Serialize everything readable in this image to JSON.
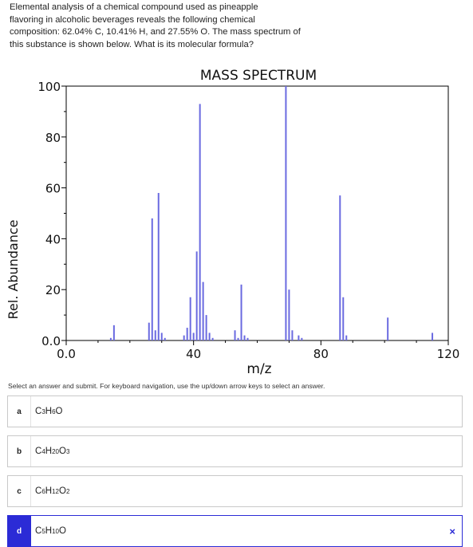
{
  "question": {
    "lines": [
      "Elemental analysis of a chemical compound used as pineapple",
      "flavoring in alcoholic beverages reveals the following chemical",
      "composition: 62.04% C, 10.41% H, and 27.55% O. The mass spectrum of",
      "this substance is shown below. What is its molecular formula?"
    ]
  },
  "chart_data": {
    "type": "bar",
    "title": "MASS SPECTRUM",
    "xlabel": "m/z",
    "ylabel": "Rel. Abundance",
    "xlim": [
      0,
      120
    ],
    "ylim": [
      0,
      100
    ],
    "x_ticks": [
      "0.0",
      "40",
      "80",
      "120"
    ],
    "y_ticks": [
      "0.0",
      "20",
      "40",
      "60",
      "80",
      "100"
    ],
    "color": "#6a6ae0",
    "peaks": [
      {
        "mz": 14,
        "abundance": 1
      },
      {
        "mz": 15,
        "abundance": 6
      },
      {
        "mz": 26,
        "abundance": 7
      },
      {
        "mz": 27,
        "abundance": 48
      },
      {
        "mz": 28,
        "abundance": 4
      },
      {
        "mz": 29,
        "abundance": 58
      },
      {
        "mz": 30,
        "abundance": 3
      },
      {
        "mz": 31,
        "abundance": 1
      },
      {
        "mz": 37,
        "abundance": 2
      },
      {
        "mz": 38,
        "abundance": 5
      },
      {
        "mz": 39,
        "abundance": 17
      },
      {
        "mz": 40,
        "abundance": 3
      },
      {
        "mz": 41,
        "abundance": 35
      },
      {
        "mz": 42,
        "abundance": 93
      },
      {
        "mz": 43,
        "abundance": 23
      },
      {
        "mz": 44,
        "abundance": 10
      },
      {
        "mz": 45,
        "abundance": 3
      },
      {
        "mz": 46,
        "abundance": 1
      },
      {
        "mz": 53,
        "abundance": 4
      },
      {
        "mz": 54,
        "abundance": 1
      },
      {
        "mz": 55,
        "abundance": 22
      },
      {
        "mz": 56,
        "abundance": 2
      },
      {
        "mz": 57,
        "abundance": 1
      },
      {
        "mz": 69,
        "abundance": 100
      },
      {
        "mz": 70,
        "abundance": 20
      },
      {
        "mz": 71,
        "abundance": 4
      },
      {
        "mz": 73,
        "abundance": 2
      },
      {
        "mz": 74,
        "abundance": 1
      },
      {
        "mz": 86,
        "abundance": 57
      },
      {
        "mz": 87,
        "abundance": 17
      },
      {
        "mz": 88,
        "abundance": 2
      },
      {
        "mz": 101,
        "abundance": 9
      },
      {
        "mz": 115,
        "abundance": 3
      }
    ]
  },
  "instructions": "Select an answer and submit. For keyboard navigation, use the up/down arrow keys to select an answer.",
  "choices": [
    {
      "letter": "a",
      "formula_parts": [
        "C",
        "3",
        "H",
        "6",
        "O",
        ""
      ]
    },
    {
      "letter": "b",
      "formula_parts": [
        "C",
        "4",
        "H",
        "20",
        "O",
        "3"
      ]
    },
    {
      "letter": "c",
      "formula_parts": [
        "C",
        "6",
        "H",
        "12",
        "O",
        "2"
      ]
    },
    {
      "letter": "d",
      "formula_parts": [
        "C",
        "5",
        "H",
        "10",
        "O",
        ""
      ]
    }
  ],
  "selected_choice": "d",
  "close_symbol": "×"
}
